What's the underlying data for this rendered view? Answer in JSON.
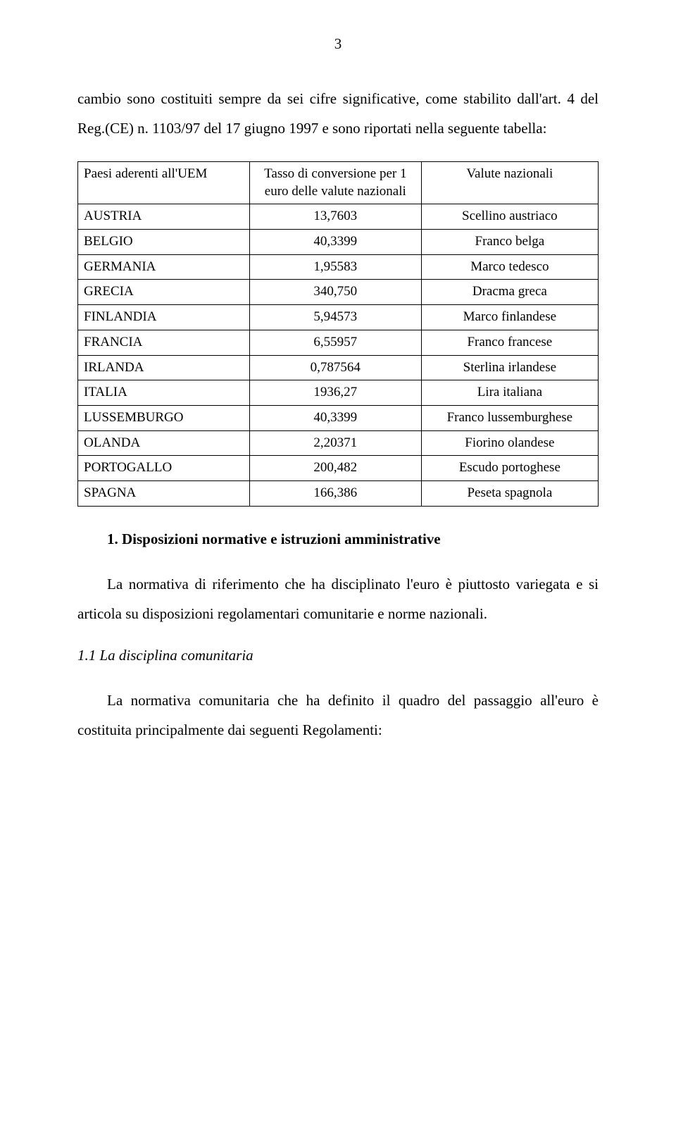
{
  "page_number": "3",
  "intro1": "cambio sono costituiti sempre da sei cifre significative, come stabilito dall'art. 4 del Reg.(CE) n. 1103/97 del 17 giugno 1997 e sono riportati nella seguente tabella:",
  "table": {
    "headers": {
      "country": "Paesi aderenti all'UEM",
      "rate": "Tasso di conversione per 1 euro delle valute nazionali",
      "currency": "Valute nazionali"
    },
    "rows": [
      {
        "country": "AUSTRIA",
        "rate": "13,7603",
        "currency": "Scellino austriaco"
      },
      {
        "country": "BELGIO",
        "rate": "40,3399",
        "currency": "Franco belga"
      },
      {
        "country": "GERMANIA",
        "rate": "1,95583",
        "currency": "Marco tedesco"
      },
      {
        "country": "GRECIA",
        "rate": "340,750",
        "currency": "Dracma greca"
      },
      {
        "country": "FINLANDIA",
        "rate": "5,94573",
        "currency": "Marco finlandese"
      },
      {
        "country": "FRANCIA",
        "rate": "6,55957",
        "currency": "Franco francese"
      },
      {
        "country": "IRLANDA",
        "rate": "0,787564",
        "currency": "Sterlina irlandese"
      },
      {
        "country": "ITALIA",
        "rate": "1936,27",
        "currency": "Lira italiana"
      },
      {
        "country": "LUSSEMBURGO",
        "rate": "40,3399",
        "currency": "Franco lussemburghese"
      },
      {
        "country": "OLANDA",
        "rate": "2,20371",
        "currency": "Fiorino olandese"
      },
      {
        "country": "PORTOGALLO",
        "rate": "200,482",
        "currency": "Escudo portoghese"
      },
      {
        "country": "SPAGNA",
        "rate": "166,386",
        "currency": "Peseta spagnola"
      }
    ]
  },
  "section_heading": "1. Disposizioni normative e istruzioni amministrative",
  "para2": "La normativa di riferimento che ha disciplinato l'euro è piuttosto variegata e si articola su disposizioni regolamentari comunitarie e norme nazionali.",
  "sub_heading": "1.1 La disciplina comunitaria",
  "para3": "La normativa comunitaria che ha definito il quadro del passaggio all'euro è costituita principalmente dai seguenti Regolamenti:"
}
